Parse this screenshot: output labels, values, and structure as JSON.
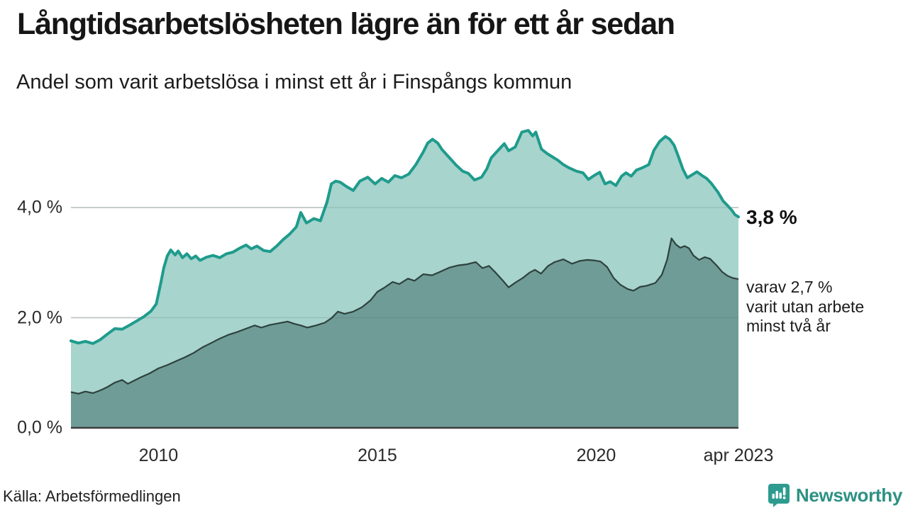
{
  "header": {
    "title": "Långtidsarbetslösheten lägre än för ett år sedan",
    "subtitle": "Andel som varit arbetslösa i minst ett år i Finspångs kommun"
  },
  "annotations": {
    "end_value_label": "3,8 %",
    "note_lines": [
      "varav 2,7 %",
      "varit utan arbete",
      "minst två år"
    ]
  },
  "footer": {
    "source": "Källa: Arbetsförmedlingen",
    "brand": "Newsworthy"
  },
  "colors": {
    "line_1yr": "#1f9b8c",
    "fill_1yr": "#a7d4cd",
    "line_2yr": "#2e423e",
    "fill_2yr": "#6f9c97",
    "grid": "#d9dddd",
    "grid_overlay": "rgba(60,95,90,0.16)",
    "axis": "#3a3f3e",
    "brand": "#2d9b8f"
  },
  "chart_data": {
    "type": "area",
    "title": "Långtidsarbetslösheten lägre än för ett år sedan",
    "subtitle": "Andel som varit arbetslösa i minst ett år i Finspångs kommun",
    "unit": "%",
    "grid": "horizontal",
    "legend_position": "end-of-line",
    "x_range": [
      2008.0,
      2023.25
    ],
    "ylim": [
      0,
      5.6
    ],
    "yticks": [
      {
        "value": 0.0,
        "label": "0,0 %"
      },
      {
        "value": 2.0,
        "label": "2,0 %"
      },
      {
        "value": 4.0,
        "label": "4,0 %"
      }
    ],
    "xticks": [
      {
        "year": 2010,
        "label": "2010"
      },
      {
        "year": 2015,
        "label": "2015"
      },
      {
        "year": 2020,
        "label": "2020"
      },
      {
        "year": 2023.25,
        "label": "apr 2023"
      }
    ],
    "series": [
      {
        "name": "Andel arbetslösa minst ett år",
        "end_value": 3.8,
        "end_label": "3,8 %",
        "points": [
          [
            2008.0,
            1.58
          ],
          [
            2008.17,
            1.54
          ],
          [
            2008.33,
            1.57
          ],
          [
            2008.5,
            1.53
          ],
          [
            2008.67,
            1.6
          ],
          [
            2008.83,
            1.7
          ],
          [
            2009.0,
            1.8
          ],
          [
            2009.17,
            1.79
          ],
          [
            2009.33,
            1.86
          ],
          [
            2009.5,
            1.94
          ],
          [
            2009.67,
            2.02
          ],
          [
            2009.83,
            2.12
          ],
          [
            2009.95,
            2.25
          ],
          [
            2010.05,
            2.62
          ],
          [
            2010.12,
            2.9
          ],
          [
            2010.2,
            3.12
          ],
          [
            2010.28,
            3.23
          ],
          [
            2010.38,
            3.14
          ],
          [
            2010.45,
            3.21
          ],
          [
            2010.55,
            3.09
          ],
          [
            2010.65,
            3.16
          ],
          [
            2010.75,
            3.07
          ],
          [
            2010.85,
            3.12
          ],
          [
            2010.95,
            3.04
          ],
          [
            2011.1,
            3.1
          ],
          [
            2011.25,
            3.13
          ],
          [
            2011.4,
            3.09
          ],
          [
            2011.55,
            3.16
          ],
          [
            2011.7,
            3.19
          ],
          [
            2011.85,
            3.26
          ],
          [
            2012.0,
            3.32
          ],
          [
            2012.12,
            3.25
          ],
          [
            2012.25,
            3.3
          ],
          [
            2012.4,
            3.22
          ],
          [
            2012.55,
            3.2
          ],
          [
            2012.7,
            3.3
          ],
          [
            2012.85,
            3.42
          ],
          [
            2013.0,
            3.52
          ],
          [
            2013.15,
            3.65
          ],
          [
            2013.25,
            3.91
          ],
          [
            2013.38,
            3.72
          ],
          [
            2013.55,
            3.8
          ],
          [
            2013.7,
            3.76
          ],
          [
            2013.85,
            4.1
          ],
          [
            2013.95,
            4.43
          ],
          [
            2014.05,
            4.48
          ],
          [
            2014.15,
            4.46
          ],
          [
            2014.3,
            4.38
          ],
          [
            2014.45,
            4.31
          ],
          [
            2014.6,
            4.48
          ],
          [
            2014.78,
            4.55
          ],
          [
            2014.95,
            4.43
          ],
          [
            2015.1,
            4.53
          ],
          [
            2015.25,
            4.46
          ],
          [
            2015.4,
            4.58
          ],
          [
            2015.55,
            4.54
          ],
          [
            2015.72,
            4.61
          ],
          [
            2015.88,
            4.78
          ],
          [
            2016.05,
            5.01
          ],
          [
            2016.15,
            5.17
          ],
          [
            2016.26,
            5.24
          ],
          [
            2016.38,
            5.17
          ],
          [
            2016.48,
            5.05
          ],
          [
            2016.63,
            4.92
          ],
          [
            2016.8,
            4.77
          ],
          [
            2016.95,
            4.66
          ],
          [
            2017.08,
            4.62
          ],
          [
            2017.22,
            4.5
          ],
          [
            2017.38,
            4.55
          ],
          [
            2017.5,
            4.7
          ],
          [
            2017.6,
            4.9
          ],
          [
            2017.77,
            5.05
          ],
          [
            2017.9,
            5.16
          ],
          [
            2018.0,
            5.03
          ],
          [
            2018.15,
            5.1
          ],
          [
            2018.3,
            5.37
          ],
          [
            2018.45,
            5.4
          ],
          [
            2018.55,
            5.3
          ],
          [
            2018.62,
            5.37
          ],
          [
            2018.75,
            5.06
          ],
          [
            2018.88,
            4.98
          ],
          [
            2019.0,
            4.92
          ],
          [
            2019.12,
            4.86
          ],
          [
            2019.25,
            4.78
          ],
          [
            2019.38,
            4.72
          ],
          [
            2019.55,
            4.66
          ],
          [
            2019.7,
            4.63
          ],
          [
            2019.82,
            4.51
          ],
          [
            2019.95,
            4.58
          ],
          [
            2020.08,
            4.64
          ],
          [
            2020.2,
            4.43
          ],
          [
            2020.32,
            4.47
          ],
          [
            2020.45,
            4.4
          ],
          [
            2020.58,
            4.57
          ],
          [
            2020.68,
            4.63
          ],
          [
            2020.8,
            4.57
          ],
          [
            2020.92,
            4.68
          ],
          [
            2021.05,
            4.72
          ],
          [
            2021.2,
            4.78
          ],
          [
            2021.32,
            5.04
          ],
          [
            2021.45,
            5.2
          ],
          [
            2021.58,
            5.29
          ],
          [
            2021.68,
            5.24
          ],
          [
            2021.78,
            5.13
          ],
          [
            2021.88,
            4.92
          ],
          [
            2021.98,
            4.7
          ],
          [
            2022.08,
            4.54
          ],
          [
            2022.2,
            4.6
          ],
          [
            2022.3,
            4.65
          ],
          [
            2022.42,
            4.58
          ],
          [
            2022.52,
            4.53
          ],
          [
            2022.63,
            4.44
          ],
          [
            2022.78,
            4.28
          ],
          [
            2022.9,
            4.12
          ],
          [
            2023.02,
            4.02
          ],
          [
            2023.1,
            3.95
          ],
          [
            2023.17,
            3.87
          ],
          [
            2023.25,
            3.83
          ]
        ]
      },
      {
        "name": "varav utan arbete minst två år",
        "end_value": 2.7,
        "end_label": "varav 2,7 % varit utan arbete minst två år",
        "points": [
          [
            2008.0,
            0.65
          ],
          [
            2008.17,
            0.62
          ],
          [
            2008.33,
            0.66
          ],
          [
            2008.5,
            0.63
          ],
          [
            2008.67,
            0.68
          ],
          [
            2008.83,
            0.74
          ],
          [
            2009.0,
            0.82
          ],
          [
            2009.17,
            0.87
          ],
          [
            2009.3,
            0.8
          ],
          [
            2009.45,
            0.86
          ],
          [
            2009.6,
            0.92
          ],
          [
            2009.8,
            0.99
          ],
          [
            2010.0,
            1.08
          ],
          [
            2010.2,
            1.14
          ],
          [
            2010.4,
            1.21
          ],
          [
            2010.6,
            1.28
          ],
          [
            2010.8,
            1.36
          ],
          [
            2011.0,
            1.46
          ],
          [
            2011.2,
            1.54
          ],
          [
            2011.4,
            1.62
          ],
          [
            2011.6,
            1.69
          ],
          [
            2011.8,
            1.74
          ],
          [
            2012.0,
            1.8
          ],
          [
            2012.2,
            1.86
          ],
          [
            2012.35,
            1.82
          ],
          [
            2012.55,
            1.87
          ],
          [
            2012.75,
            1.9
          ],
          [
            2012.95,
            1.93
          ],
          [
            2013.1,
            1.89
          ],
          [
            2013.25,
            1.86
          ],
          [
            2013.4,
            1.82
          ],
          [
            2013.6,
            1.86
          ],
          [
            2013.8,
            1.91
          ],
          [
            2013.95,
            1.99
          ],
          [
            2014.1,
            2.11
          ],
          [
            2014.25,
            2.07
          ],
          [
            2014.45,
            2.11
          ],
          [
            2014.65,
            2.19
          ],
          [
            2014.85,
            2.32
          ],
          [
            2015.0,
            2.47
          ],
          [
            2015.15,
            2.54
          ],
          [
            2015.35,
            2.65
          ],
          [
            2015.5,
            2.61
          ],
          [
            2015.7,
            2.71
          ],
          [
            2015.85,
            2.67
          ],
          [
            2016.05,
            2.79
          ],
          [
            2016.25,
            2.77
          ],
          [
            2016.45,
            2.84
          ],
          [
            2016.65,
            2.91
          ],
          [
            2016.85,
            2.95
          ],
          [
            2017.05,
            2.97
          ],
          [
            2017.25,
            3.01
          ],
          [
            2017.4,
            2.9
          ],
          [
            2017.55,
            2.94
          ],
          [
            2017.7,
            2.82
          ],
          [
            2017.86,
            2.68
          ],
          [
            2018.0,
            2.55
          ],
          [
            2018.16,
            2.64
          ],
          [
            2018.32,
            2.72
          ],
          [
            2018.48,
            2.82
          ],
          [
            2018.6,
            2.87
          ],
          [
            2018.74,
            2.8
          ],
          [
            2018.9,
            2.94
          ],
          [
            2019.05,
            3.01
          ],
          [
            2019.25,
            3.06
          ],
          [
            2019.45,
            2.98
          ],
          [
            2019.62,
            3.03
          ],
          [
            2019.8,
            3.05
          ],
          [
            2019.95,
            3.04
          ],
          [
            2020.1,
            3.02
          ],
          [
            2020.25,
            2.92
          ],
          [
            2020.4,
            2.72
          ],
          [
            2020.55,
            2.6
          ],
          [
            2020.72,
            2.52
          ],
          [
            2020.85,
            2.49
          ],
          [
            2021.0,
            2.56
          ],
          [
            2021.15,
            2.58
          ],
          [
            2021.35,
            2.63
          ],
          [
            2021.5,
            2.78
          ],
          [
            2021.62,
            3.05
          ],
          [
            2021.72,
            3.44
          ],
          [
            2021.82,
            3.33
          ],
          [
            2021.92,
            3.27
          ],
          [
            2022.02,
            3.3
          ],
          [
            2022.12,
            3.26
          ],
          [
            2022.22,
            3.13
          ],
          [
            2022.35,
            3.05
          ],
          [
            2022.48,
            3.1
          ],
          [
            2022.6,
            3.07
          ],
          [
            2022.75,
            2.95
          ],
          [
            2022.88,
            2.83
          ],
          [
            2023.0,
            2.76
          ],
          [
            2023.12,
            2.72
          ],
          [
            2023.25,
            2.7
          ]
        ]
      }
    ]
  }
}
